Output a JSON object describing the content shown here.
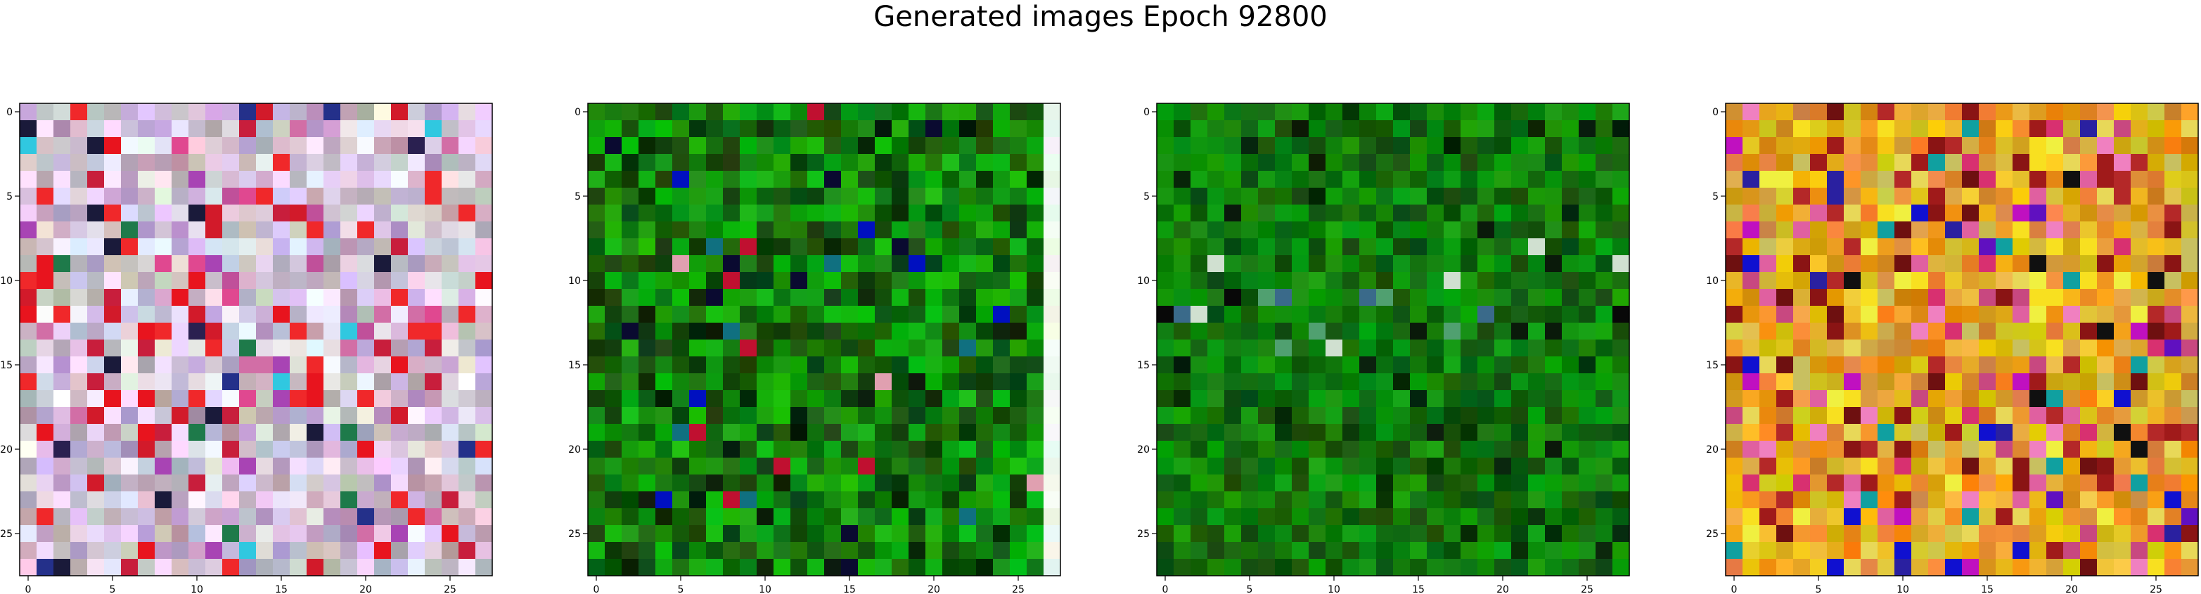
{
  "title": "Generated images Epoch 92800",
  "chart_data": [
    {
      "type": "heatmap",
      "style": "pastel-pink-red",
      "xticks": [
        "0",
        "5",
        "10",
        "15",
        "20",
        "25"
      ],
      "yticks": [
        "0",
        "5",
        "10",
        "15",
        "20",
        "25"
      ],
      "xlim": [
        -0.5,
        27.5
      ],
      "ylim": [
        27.5,
        -0.5
      ],
      "grid": false
    },
    {
      "type": "heatmap",
      "style": "green-noise-a",
      "xticks": [
        "0",
        "5",
        "10",
        "15",
        "20",
        "25"
      ],
      "yticks": [
        "0",
        "5",
        "10",
        "15",
        "20",
        "25"
      ],
      "xlim": [
        -0.5,
        27.5
      ],
      "ylim": [
        27.5,
        -0.5
      ],
      "grid": false
    },
    {
      "type": "heatmap",
      "style": "green-noise-b",
      "xticks": [
        "0",
        "5",
        "10",
        "15",
        "20",
        "25"
      ],
      "yticks": [
        "0",
        "5",
        "10",
        "15",
        "20",
        "25"
      ],
      "xlim": [
        -0.5,
        27.5
      ],
      "ylim": [
        27.5,
        -0.5
      ],
      "grid": false
    },
    {
      "type": "heatmap",
      "style": "warm-yellow-orange",
      "xticks": [
        "0",
        "5",
        "10",
        "15",
        "20",
        "25"
      ],
      "yticks": [
        "0",
        "5",
        "10",
        "15",
        "20",
        "25"
      ],
      "xlim": [
        -0.5,
        27.5
      ],
      "ylim": [
        27.5,
        -0.5
      ],
      "grid": false
    }
  ]
}
